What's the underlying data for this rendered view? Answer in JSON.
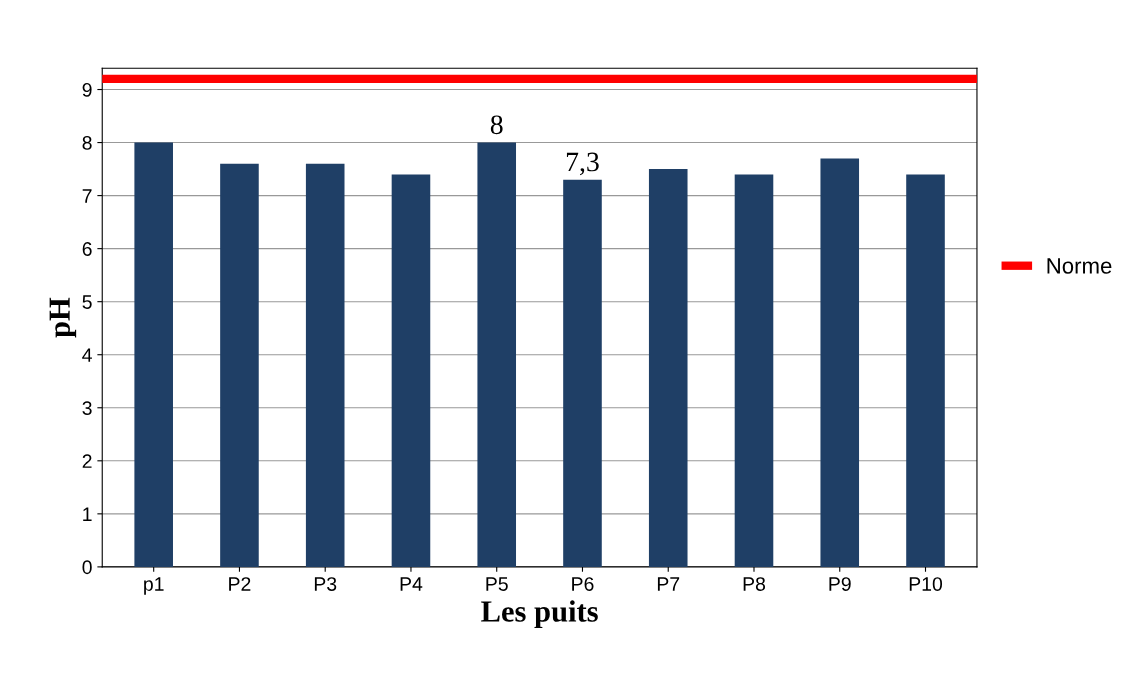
{
  "chart_data": {
    "type": "bar",
    "xlabel": "Les puits",
    "ylabel": "pH",
    "categories": [
      "p1",
      "P2",
      "P3",
      "P4",
      "P5",
      "P6",
      "P7",
      "P8",
      "P9",
      "P10"
    ],
    "values": [
      8,
      7.6,
      7.6,
      7.4,
      8,
      7.3,
      7.5,
      7.4,
      7.7,
      7.4
    ],
    "value_labels": [
      null,
      null,
      null,
      null,
      "8",
      "7,3",
      null,
      null,
      null,
      null
    ],
    "color": "#1f3f66",
    "ylim": [
      0,
      9.4
    ],
    "yticks": [
      0,
      1,
      2,
      3,
      4,
      5,
      6,
      7,
      8,
      9
    ],
    "grid": "y",
    "ref_lines": [
      {
        "axis": "y",
        "value": 9.2,
        "label": "Norme",
        "color": "#ff0000"
      }
    ],
    "legend": "right"
  }
}
